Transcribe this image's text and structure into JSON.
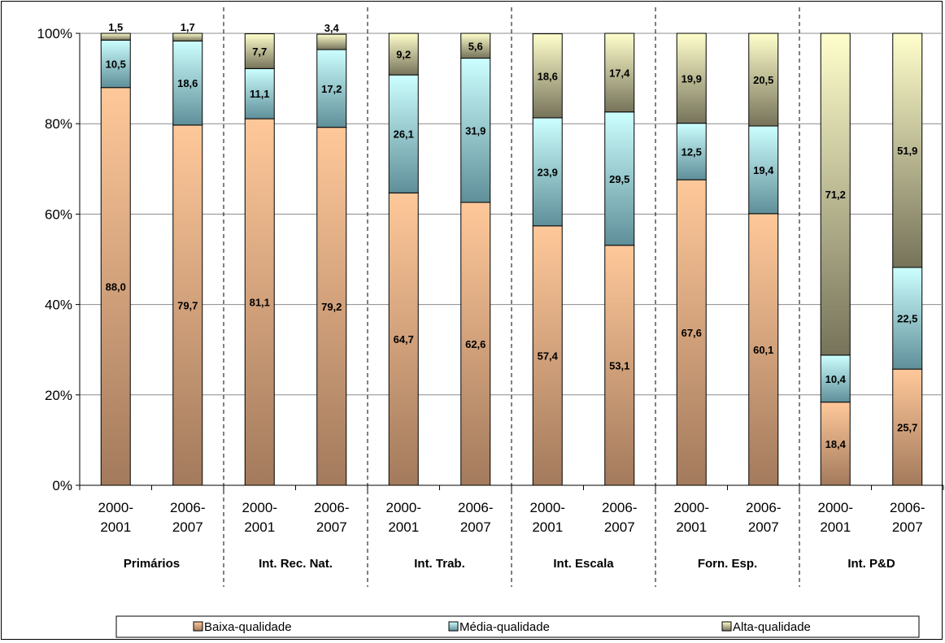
{
  "chart_data": {
    "type": "bar",
    "stacked": true,
    "percent": true,
    "title": "",
    "xlabel": "",
    "ylabel": "",
    "ylim": [
      0,
      100
    ],
    "y_ticks": [
      "0%",
      "20%",
      "40%",
      "60%",
      "80%",
      "100%"
    ],
    "grid": true,
    "legend_position": "bottom",
    "categories": [
      {
        "period": [
          "2000-",
          "2001"
        ],
        "group": "Primários"
      },
      {
        "period": [
          "2006-",
          "2007"
        ],
        "group": "Primários"
      },
      {
        "period": [
          "2000-",
          "2001"
        ],
        "group": "Int. Rec. Nat."
      },
      {
        "period": [
          "2006-",
          "2007"
        ],
        "group": "Int. Rec. Nat."
      },
      {
        "period": [
          "2000-",
          "2001"
        ],
        "group": "Int. Trab."
      },
      {
        "period": [
          "2006-",
          "2007"
        ],
        "group": "Int. Trab."
      },
      {
        "period": [
          "2000-",
          "2001"
        ],
        "group": "Int. Escala"
      },
      {
        "period": [
          "2006-",
          "2007"
        ],
        "group": "Int. Escala"
      },
      {
        "period": [
          "2000-",
          "2001"
        ],
        "group": "Forn. Esp."
      },
      {
        "period": [
          "2006-",
          "2007"
        ],
        "group": "Forn. Esp."
      },
      {
        "period": [
          "2000-",
          "2001"
        ],
        "group": "Int. P&D"
      },
      {
        "period": [
          "2006-",
          "2007"
        ],
        "group": "Int. P&D"
      }
    ],
    "groups": [
      "Primários",
      "Int. Rec. Nat.",
      "Int. Trab.",
      "Int. Escala",
      "Forn. Esp.",
      "Int. P&D"
    ],
    "series": [
      {
        "name": "Baixa-qualidade",
        "color_top": "#ffc89a",
        "color_bottom": "#a37a5c",
        "values": [
          88.0,
          79.7,
          81.1,
          79.2,
          64.7,
          62.6,
          57.4,
          53.1,
          67.6,
          60.1,
          18.4,
          25.7
        ],
        "labels": [
          "88,0",
          "79,7",
          "81,1",
          "79,2",
          "64,7",
          "62,6",
          "57,4",
          "53,1",
          "67,6",
          "60,1",
          "18,4",
          "25,7"
        ]
      },
      {
        "name": "Média-qualidade",
        "color_top": "#ccffff",
        "color_bottom": "#5f8f99",
        "values": [
          10.5,
          18.6,
          11.1,
          17.2,
          26.1,
          31.9,
          23.9,
          29.5,
          12.5,
          19.4,
          10.4,
          22.5
        ],
        "labels": [
          "10,5",
          "18,6",
          "11,1",
          "17,2",
          "26,1",
          "31,9",
          "23,9",
          "29,5",
          "12,5",
          "19,4",
          "10,4",
          "22,5"
        ]
      },
      {
        "name": "Alta-qualidade",
        "color_top": "#ffffcc",
        "color_bottom": "#76735a",
        "values": [
          1.5,
          1.7,
          7.7,
          3.4,
          9.2,
          5.6,
          18.6,
          17.4,
          19.9,
          20.5,
          71.2,
          51.9
        ],
        "labels": [
          "1,5",
          "1,7",
          "7,7",
          "3,4",
          "9,2",
          "5,6",
          "18,6",
          "17,4",
          "19,9",
          "20,5",
          "71,2",
          "51,9"
        ]
      }
    ]
  }
}
